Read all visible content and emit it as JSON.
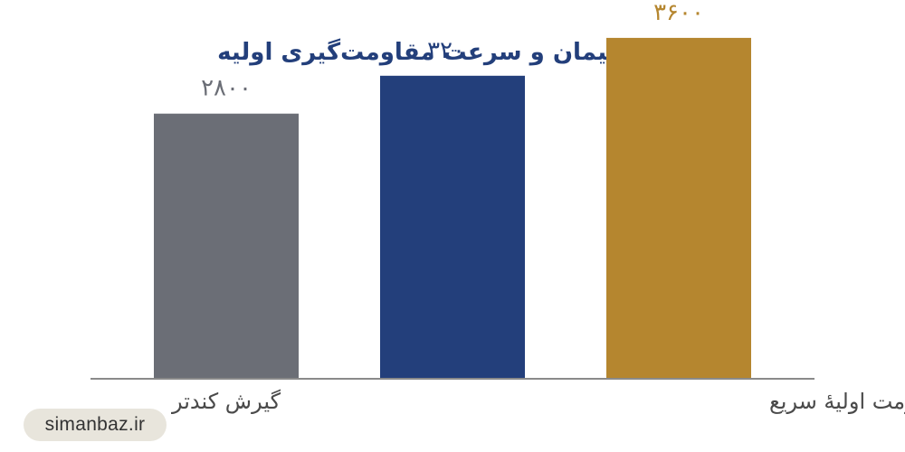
{
  "chart_data": {
    "type": "bar",
    "title": "بلین سیمان و سرعت مقاومت‌گیری اولیه",
    "categories": [
      "گیرش کندتر",
      "",
      "مقاومت اولیهٔ سریع"
    ],
    "values": [
      2800,
      3200,
      3600
    ],
    "value_labels": [
      "۲۸۰۰",
      "۳۲۰۰",
      "۳۶۰۰"
    ],
    "colors": [
      "#6b6e76",
      "#233f7b",
      "#b5862f"
    ],
    "title_color": "#233f7b",
    "ylim": [
      0,
      4000
    ],
    "grid": false,
    "legend": "none",
    "xlabel": "",
    "ylabel": ""
  },
  "watermark": "simanbaz.ir"
}
